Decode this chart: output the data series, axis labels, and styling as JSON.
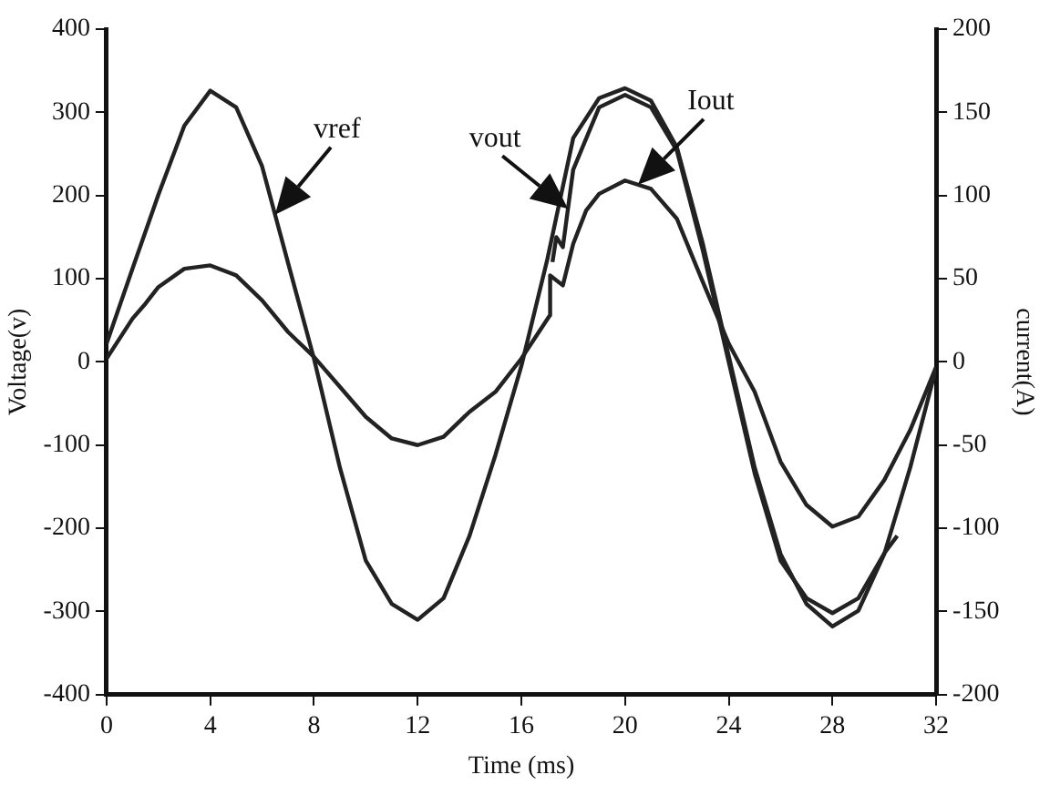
{
  "chart_data": {
    "type": "line",
    "xlabel": "Time (ms)",
    "ylabel": "Voltage(v)",
    "y2label": "current(A)",
    "xlim": [
      0,
      32
    ],
    "xticks": [
      0,
      4,
      8,
      12,
      16,
      20,
      24,
      28,
      32
    ],
    "ylim": [
      -400,
      400
    ],
    "yticks": [
      -400,
      -300,
      -200,
      -100,
      0,
      100,
      200,
      300,
      400
    ],
    "y2lim": [
      -200,
      200
    ],
    "y2ticks": [
      -200,
      -150,
      -100,
      -50,
      0,
      50,
      100,
      150,
      200
    ],
    "grid": false,
    "legend": false,
    "marker": "none",
    "line_style": "solid",
    "series": [
      {
        "color": "#222222",
        "x": [
          0,
          1,
          2,
          3,
          4,
          5,
          6,
          7,
          8,
          9,
          10,
          11,
          12,
          13,
          14,
          15,
          16,
          17,
          18,
          19,
          20,
          21,
          22,
          23,
          24,
          25,
          26,
          27,
          28,
          29,
          30,
          31,
          32
        ],
        "values": [
          22,
          112,
          201,
          284,
          326,
          306,
          235,
          119,
          4,
          -127,
          -239,
          -291,
          -310,
          -284,
          -209,
          -112,
          -5,
          123,
          269,
          317,
          329,
          314,
          258,
          142,
          7,
          -127,
          -231,
          -291,
          -318,
          -299,
          -231,
          -127,
          -7
        ]
      },
      {
        "color": "#222222",
        "x": [
          17.2,
          17.35,
          17.6,
          18,
          19,
          20,
          21,
          22,
          23,
          24,
          25,
          26,
          27,
          28,
          29,
          30,
          30.5
        ],
        "values": [
          120,
          150,
          138,
          231,
          306,
          321,
          306,
          254,
          134,
          0,
          -134,
          -239,
          -284,
          -302,
          -284,
          -230,
          -209
        ]
      },
      {
        "color": "#222222",
        "axis": "y2",
        "x": [
          0,
          1,
          1.5,
          2,
          3,
          4,
          5,
          6,
          7,
          8,
          9,
          10,
          11,
          12,
          13,
          14,
          15,
          16,
          17.1,
          17.11,
          17.6,
          18,
          18.5,
          19,
          20,
          21,
          22,
          23,
          24,
          25,
          26,
          27,
          28,
          29,
          30,
          31,
          32
        ],
        "values": [
          2,
          26,
          35,
          45,
          56,
          58,
          52,
          37,
          18,
          3,
          -15,
          -33,
          -46,
          -50,
          -45,
          -30,
          -18,
          2,
          28,
          52,
          46,
          71,
          91,
          101,
          109,
          104,
          86,
          48,
          11,
          -18,
          -60,
          -86,
          -99,
          -93,
          -71,
          -41,
          -3
        ]
      }
    ],
    "annotations": [
      {
        "text": "vref",
        "x": 6.5,
        "y": 177
      },
      {
        "text": "vout",
        "x": 17.8,
        "y": 184
      },
      {
        "text": "Iout",
        "x": 20.5,
        "y": 213
      }
    ]
  }
}
